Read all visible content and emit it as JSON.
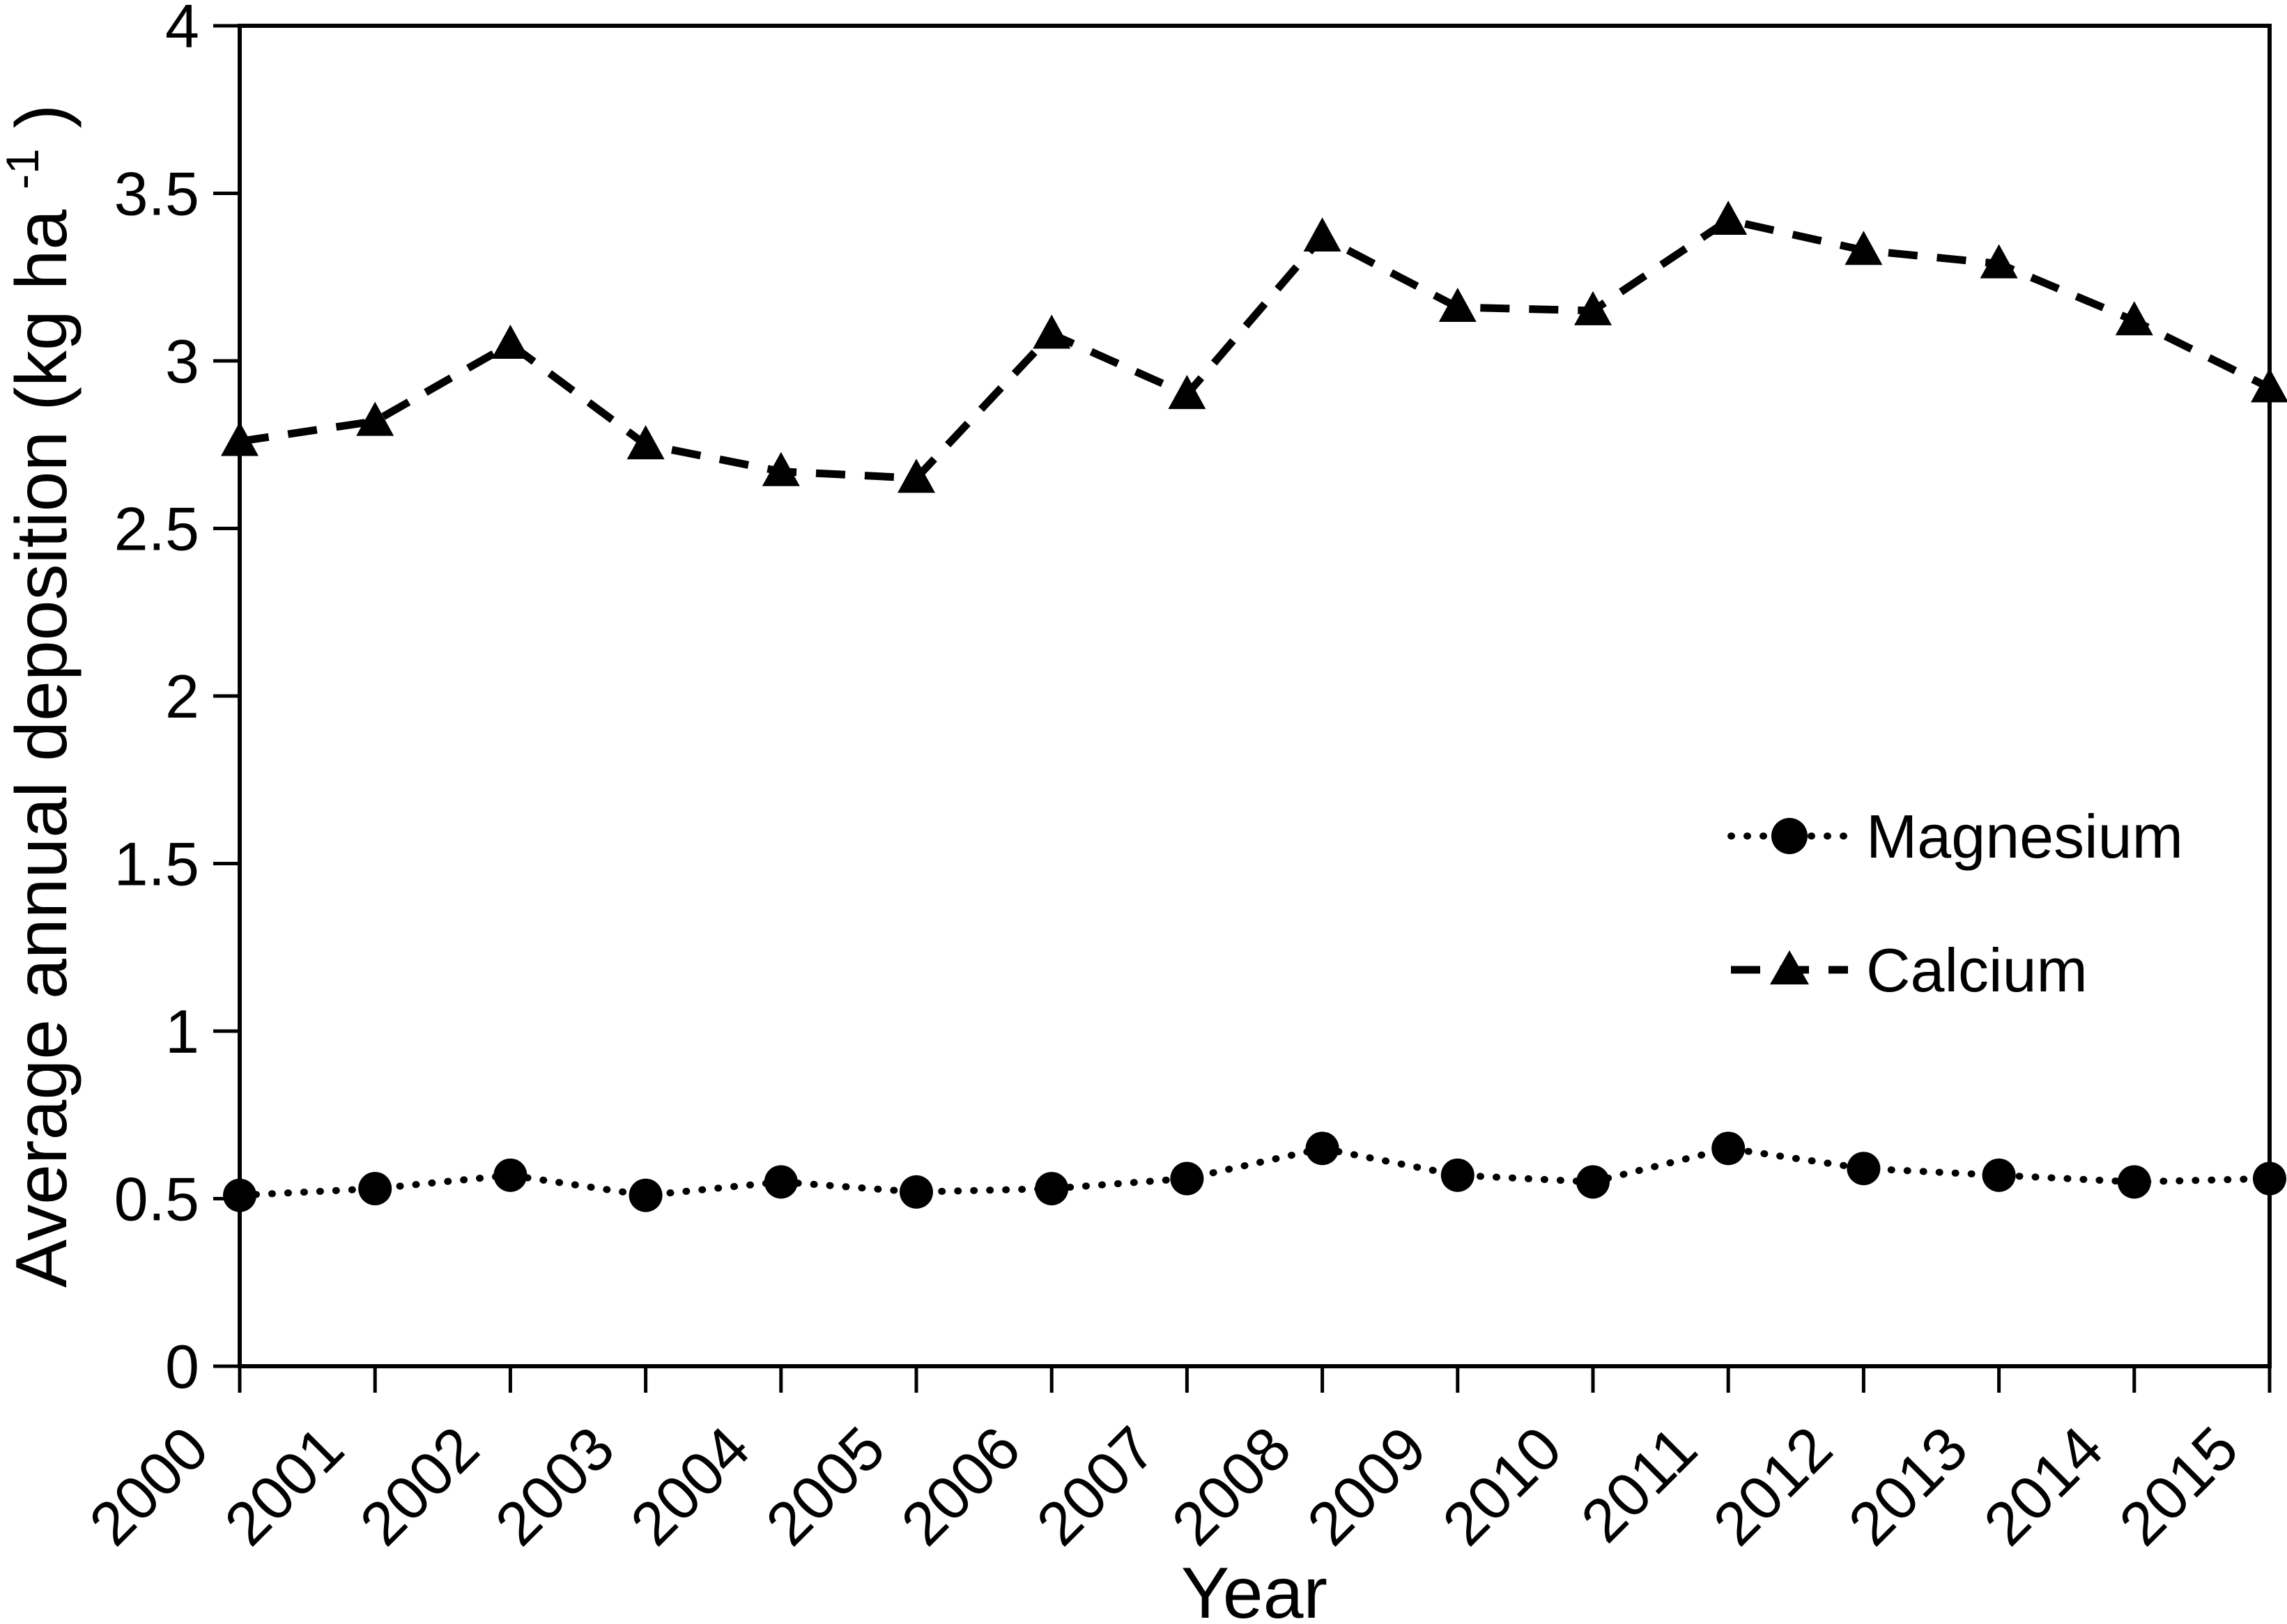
{
  "chart_data": {
    "type": "line",
    "title": "",
    "xlabel": "Year",
    "ylabel": "Average annual deposition (kg ha⁻¹)",
    "ylabel_main": "Average annual deposition (kg ha",
    "ylabel_sup": "-1",
    "ylabel_close": ")",
    "x": [
      "2000",
      "2001",
      "2002",
      "2003",
      "2004",
      "2005",
      "2006",
      "2007",
      "2008",
      "2009",
      "2010",
      "2011",
      "2012",
      "2013",
      "2014",
      "2015"
    ],
    "series": [
      {
        "name": "Magnesium",
        "marker": "circle",
        "line": "dotted",
        "color": "#000000",
        "values": [
          0.51,
          0.53,
          0.57,
          0.51,
          0.55,
          0.52,
          0.53,
          0.56,
          0.65,
          0.57,
          0.55,
          0.65,
          0.59,
          0.57,
          0.55,
          0.56
        ]
      },
      {
        "name": "Calcium",
        "marker": "triangle",
        "line": "dashed",
        "color": "#000000",
        "values": [
          2.76,
          2.82,
          3.05,
          2.75,
          2.67,
          2.65,
          3.08,
          2.9,
          3.37,
          3.16,
          3.15,
          3.42,
          3.33,
          3.29,
          3.12,
          2.92
        ]
      }
    ],
    "ylim": [
      0,
      4
    ],
    "ytick_values": [
      0,
      0.5,
      1,
      1.5,
      2,
      2.5,
      3,
      3.5,
      4
    ],
    "ytick_labels": [
      "0",
      "0.5",
      "1",
      "1.5",
      "2",
      "2.5",
      "3",
      "3.5",
      "4"
    ],
    "legend_position": "center-right-inside",
    "grid": false,
    "axis_color": "#000000",
    "background_color": "#ffffff"
  }
}
